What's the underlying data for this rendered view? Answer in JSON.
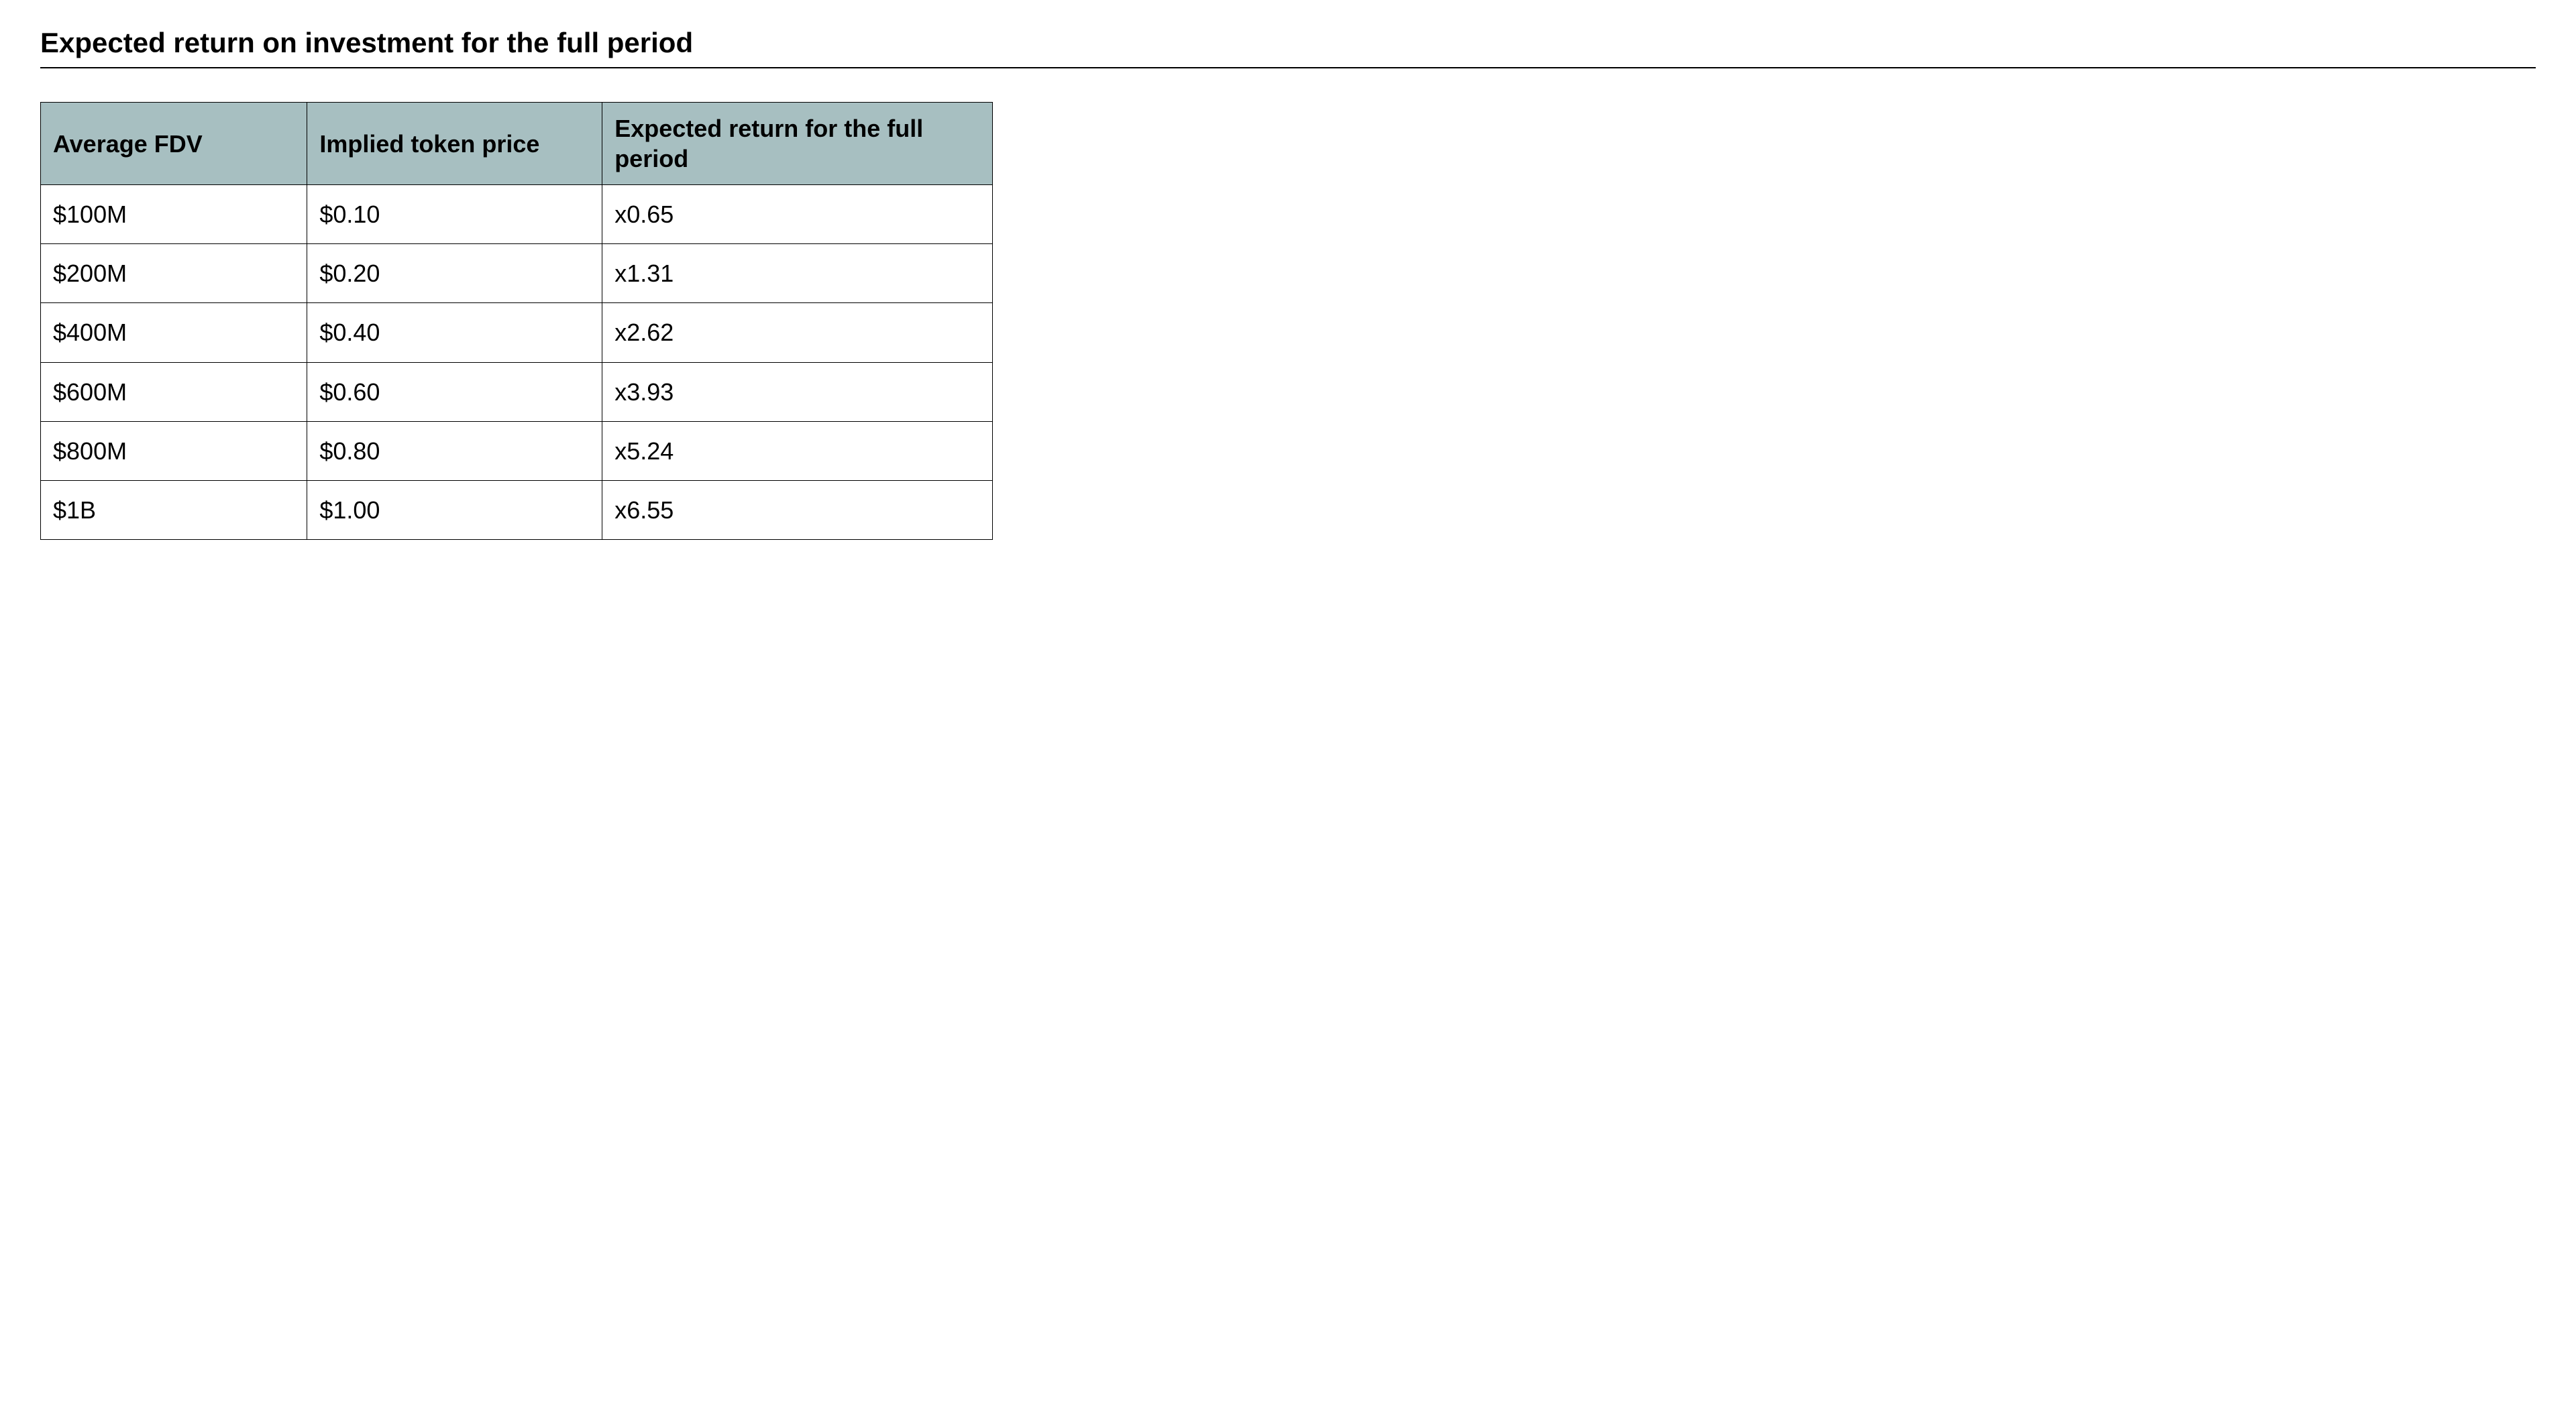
{
  "title": "Expected return on investment for the full period",
  "table": {
    "type": "table",
    "header_bg_color": "#a7bfc1",
    "border_color": "#000000",
    "cell_bg_color": "#ffffff",
    "text_color": "#000000",
    "title_fontsize": 42,
    "header_fontsize": 36,
    "cell_fontsize": 36,
    "column_widths_pct": [
      28,
      31,
      41
    ],
    "columns": [
      "Average FDV",
      "Implied token price",
      "Expected return for the full period"
    ],
    "rows": [
      [
        "$100M",
        "$0.10",
        "x0.65"
      ],
      [
        "$200M",
        "$0.20",
        "x1.31"
      ],
      [
        "$400M",
        "$0.40",
        "x2.62"
      ],
      [
        "$600M",
        "$0.60",
        "x3.93"
      ],
      [
        "$800M",
        "$0.80",
        "x5.24"
      ],
      [
        "$1B",
        "$1.00",
        "x6.55"
      ]
    ]
  }
}
